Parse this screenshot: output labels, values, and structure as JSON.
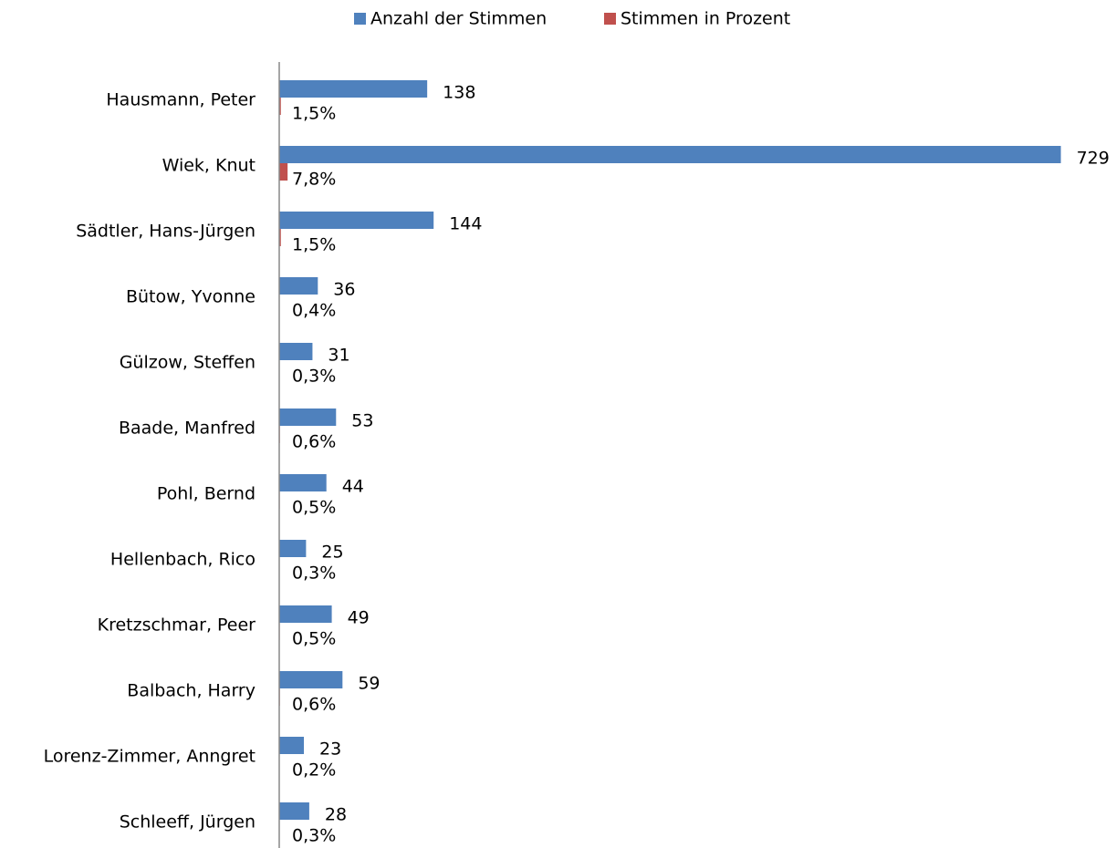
{
  "chart_data": {
    "type": "barh",
    "categories": [
      "Hausmann, Peter",
      "Wiek, Knut",
      "Sädtler, Hans-Jürgen",
      "Bütow, Yvonne",
      "Gülzow, Steffen",
      "Baade, Manfred",
      "Pohl, Bernd",
      "Hellenbach, Rico",
      "Kretzschmar, Peer",
      "Balbach, Harry",
      "Lorenz-Zimmer, Anngret",
      "Schleeff, Jürgen"
    ],
    "series": [
      {
        "name": "Anzahl der Stimmen",
        "color": "#4f81bd",
        "values": [
          138,
          729,
          144,
          36,
          31,
          53,
          44,
          25,
          49,
          59,
          23,
          28
        ]
      },
      {
        "name": "Stimmen in Prozent",
        "color": "#c0504d",
        "values": [
          1.5,
          7.8,
          1.5,
          0.4,
          0.3,
          0.6,
          0.5,
          0.3,
          0.5,
          0.6,
          0.2,
          0.3
        ],
        "value_labels": [
          "1,5%",
          "7,8%",
          "1,5%",
          "0,4%",
          "0,3%",
          "0,6%",
          "0,5%",
          "0,3%",
          "0,5%",
          "0,6%",
          "0,2%",
          "0,3%"
        ]
      }
    ],
    "xlim": [
      0,
      760
    ],
    "legend": "top"
  }
}
